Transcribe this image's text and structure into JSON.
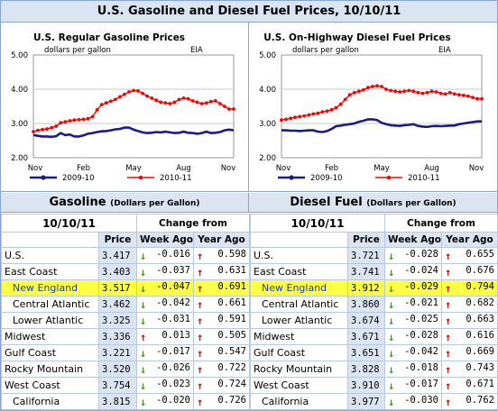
{
  "title": "U.S. Gasoline and Diesel Fuel Prices, 10/10/11",
  "charts": [
    {
      "title": "U.S. Regular Gasoline Prices",
      "unit": "dollars per gallon",
      "source": "EIA",
      "legend": [
        "2009-10",
        "2010-11"
      ]
    },
    {
      "title": "U.S. On-Highway Diesel Fuel Prices",
      "unit": "dollars per gallon",
      "source": "EIA",
      "legend": [
        "2009-10",
        "2010-11"
      ]
    }
  ],
  "chart_data": [
    {
      "type": "line",
      "title": "U.S. Regular Gasoline Prices",
      "ylabel": "dollars per gallon",
      "ylim": [
        2.0,
        5.0
      ],
      "yticks": [
        "5.00",
        "4.00",
        "3.00",
        "2.00"
      ],
      "xticks": [
        "Nov",
        "Feb",
        "May",
        "Aug",
        "Nov"
      ],
      "colors": {
        "2009-10": "#1a1a8c",
        "2010-11": "#ff0000"
      },
      "series": [
        {
          "name": "2009-10",
          "values": [
            2.66,
            2.64,
            2.62,
            2.62,
            2.61,
            2.63,
            2.72,
            2.66,
            2.68,
            2.62,
            2.62,
            2.65,
            2.7,
            2.72,
            2.75,
            2.77,
            2.78,
            2.8,
            2.83,
            2.84,
            2.88,
            2.88,
            2.82,
            2.78,
            2.74,
            2.72,
            2.73,
            2.75,
            2.74,
            2.76,
            2.74,
            2.72,
            2.73,
            2.76,
            2.73,
            2.72,
            2.7,
            2.72,
            2.76,
            2.72,
            2.73,
            2.75,
            2.8,
            2.82,
            2.8
          ]
        },
        {
          "name": "2010-11",
          "values": [
            2.76,
            2.8,
            2.82,
            2.84,
            2.88,
            2.92,
            3.02,
            3.05,
            3.08,
            3.1,
            3.11,
            3.12,
            3.14,
            3.2,
            3.4,
            3.55,
            3.6,
            3.65,
            3.7,
            3.78,
            3.85,
            3.92,
            3.96,
            3.95,
            3.88,
            3.8,
            3.74,
            3.68,
            3.62,
            3.6,
            3.58,
            3.62,
            3.7,
            3.74,
            3.72,
            3.66,
            3.62,
            3.58,
            3.6,
            3.64,
            3.66,
            3.58,
            3.5,
            3.42,
            3.42
          ]
        }
      ]
    },
    {
      "type": "line",
      "title": "U.S. On-Highway Diesel Fuel Prices",
      "ylabel": "dollars per gallon",
      "ylim": [
        2.0,
        5.0
      ],
      "yticks": [
        "5.00",
        "4.00",
        "3.00",
        "2.00"
      ],
      "xticks": [
        "Nov",
        "Feb",
        "May",
        "Aug",
        "Nov"
      ],
      "colors": {
        "2009-10": "#1a1a8c",
        "2010-11": "#ff0000"
      },
      "series": [
        {
          "name": "2009-10",
          "values": [
            2.8,
            2.8,
            2.79,
            2.79,
            2.78,
            2.79,
            2.8,
            2.8,
            2.76,
            2.75,
            2.78,
            2.84,
            2.92,
            2.94,
            2.96,
            2.98,
            3.0,
            3.05,
            3.08,
            3.12,
            3.12,
            3.1,
            3.02,
            2.98,
            2.95,
            2.94,
            2.93,
            2.95,
            2.96,
            2.98,
            2.93,
            2.91,
            2.9,
            2.92,
            2.93,
            2.92,
            2.93,
            2.94,
            2.94,
            2.98,
            3.0,
            3.02,
            3.04,
            3.06,
            3.06
          ]
        },
        {
          "name": "2010-11",
          "values": [
            3.1,
            3.12,
            3.15,
            3.18,
            3.2,
            3.22,
            3.25,
            3.28,
            3.3,
            3.34,
            3.36,
            3.4,
            3.46,
            3.56,
            3.7,
            3.84,
            3.9,
            3.94,
            3.98,
            4.05,
            4.08,
            4.1,
            4.08,
            4.0,
            3.96,
            3.94,
            3.92,
            3.94,
            3.96,
            3.94,
            3.9,
            3.88,
            3.9,
            3.94,
            3.92,
            3.88,
            3.86,
            3.9,
            3.86,
            3.84,
            3.82,
            3.8,
            3.76,
            3.72,
            3.72
          ]
        }
      ]
    }
  ],
  "gasoline": {
    "heading": "Gasoline",
    "heading_sub": "(Dollars per Gallon)",
    "date": "10/10/11",
    "change_from": "Change from",
    "col_price": "Price",
    "col_week": "Week Ago",
    "col_year": "Year Ago",
    "rows": [
      {
        "region": "U.S.",
        "price": "3.417",
        "week": "-0.016",
        "week_dir": "down",
        "year": "0.598",
        "year_dir": "up",
        "indent": false,
        "highlight": false
      },
      {
        "region": "East Coast",
        "price": "3.403",
        "week": "-0.037",
        "week_dir": "down",
        "year": "0.631",
        "year_dir": "up",
        "indent": false,
        "highlight": false
      },
      {
        "region": "New England",
        "price": "3.517",
        "week": "-0.047",
        "week_dir": "down",
        "year": "0.691",
        "year_dir": "up",
        "indent": true,
        "highlight": true
      },
      {
        "region": "Central Atlantic",
        "price": "3.462",
        "week": "-0.042",
        "week_dir": "down",
        "year": "0.661",
        "year_dir": "up",
        "indent": true,
        "highlight": false
      },
      {
        "region": "Lower Atlantic",
        "price": "3.325",
        "week": "-0.031",
        "week_dir": "down",
        "year": "0.591",
        "year_dir": "up",
        "indent": true,
        "highlight": false
      },
      {
        "region": "Midwest",
        "price": "3.336",
        "week": "0.013",
        "week_dir": "up",
        "year": "0.505",
        "year_dir": "up",
        "indent": false,
        "highlight": false
      },
      {
        "region": "Gulf Coast",
        "price": "3.221",
        "week": "-0.017",
        "week_dir": "down",
        "year": "0.547",
        "year_dir": "up",
        "indent": false,
        "highlight": false
      },
      {
        "region": "Rocky Mountain",
        "price": "3.520",
        "week": "-0.026",
        "week_dir": "down",
        "year": "0.722",
        "year_dir": "up",
        "indent": false,
        "highlight": false
      },
      {
        "region": "West Coast",
        "price": "3.754",
        "week": "-0.023",
        "week_dir": "down",
        "year": "0.724",
        "year_dir": "up",
        "indent": false,
        "highlight": false
      },
      {
        "region": "California",
        "price": "3.815",
        "week": "-0.020",
        "week_dir": "down",
        "year": "0.726",
        "year_dir": "up",
        "indent": true,
        "highlight": false
      }
    ]
  },
  "diesel": {
    "heading": "Diesel Fuel",
    "heading_sub": "(Dollars per Gallon)",
    "date": "10/10/11",
    "change_from": "Change from",
    "col_price": "Price",
    "col_week": "Week Ago",
    "col_year": "Year Ago",
    "rows": [
      {
        "region": "U.S.",
        "price": "3.721",
        "week": "-0.028",
        "week_dir": "down",
        "year": "0.655",
        "year_dir": "up",
        "indent": false,
        "highlight": false
      },
      {
        "region": "East Coast",
        "price": "3.741",
        "week": "-0.024",
        "week_dir": "down",
        "year": "0.676",
        "year_dir": "up",
        "indent": false,
        "highlight": false
      },
      {
        "region": "New England",
        "price": "3.912",
        "week": "-0.029",
        "week_dir": "down",
        "year": "0.794",
        "year_dir": "up",
        "indent": true,
        "highlight": true
      },
      {
        "region": "Central Atlantic",
        "price": "3.860",
        "week": "-0.021",
        "week_dir": "down",
        "year": "0.682",
        "year_dir": "up",
        "indent": true,
        "highlight": false
      },
      {
        "region": "Lower Atlantic",
        "price": "3.674",
        "week": "-0.025",
        "week_dir": "down",
        "year": "0.663",
        "year_dir": "up",
        "indent": true,
        "highlight": false
      },
      {
        "region": "Midwest",
        "price": "3.671",
        "week": "-0.028",
        "week_dir": "down",
        "year": "0.616",
        "year_dir": "up",
        "indent": false,
        "highlight": false
      },
      {
        "region": "Gulf Coast",
        "price": "3.651",
        "week": "-0.042",
        "week_dir": "down",
        "year": "0.669",
        "year_dir": "up",
        "indent": false,
        "highlight": false
      },
      {
        "region": "Rocky Mountain",
        "price": "3.828",
        "week": "-0.018",
        "week_dir": "down",
        "year": "0.743",
        "year_dir": "up",
        "indent": false,
        "highlight": false
      },
      {
        "region": "West Coast",
        "price": "3.910",
        "week": "-0.017",
        "week_dir": "down",
        "year": "0.671",
        "year_dir": "up",
        "indent": false,
        "highlight": false
      },
      {
        "region": "California",
        "price": "3.977",
        "week": "-0.030",
        "week_dir": "down",
        "year": "0.762",
        "year_dir": "up",
        "indent": true,
        "highlight": false
      }
    ]
  }
}
